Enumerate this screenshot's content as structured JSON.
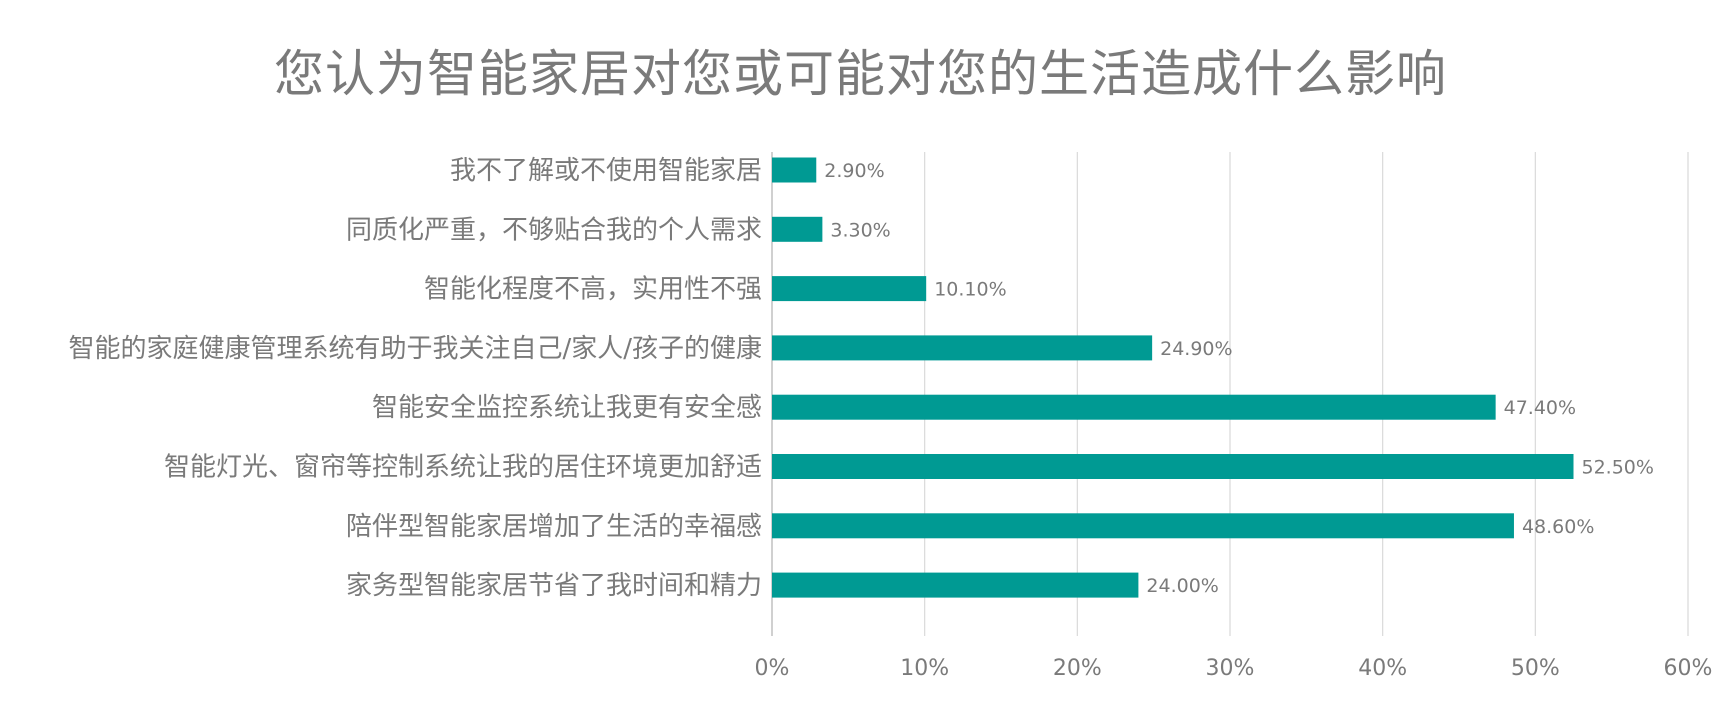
{
  "chart_data": {
    "type": "bar",
    "orientation": "horizontal",
    "title": "您认为智能家居对您或可能对您的生活造成什么影响",
    "xlabel": "",
    "ylabel": "",
    "categories": [
      "我不了解或不使用智能家居",
      "同质化严重，不够贴合我的个人需求",
      "智能化程度不高，实用性不强",
      "智能的家庭健康管理系统有助于我关注自己/家人/孩子的健康",
      "智能安全监控系统让我更有安全感",
      "智能灯光、窗帘等控制系统让我的居住环境更加舒适",
      "陪伴型智能家居增加了生活的幸福感",
      "家务型智能家居节省了我时间和精力"
    ],
    "values": [
      2.9,
      3.3,
      10.1,
      24.9,
      47.4,
      52.5,
      48.6,
      24.0
    ],
    "data_labels": [
      "2.90%",
      "3.30%",
      "10.10%",
      "24.90%",
      "47.40%",
      "52.50%",
      "48.60%",
      "24.00%"
    ],
    "xlim": [
      0,
      60
    ],
    "ticks": [
      0,
      10,
      20,
      30,
      40,
      50,
      60
    ],
    "tick_labels": [
      "0%",
      "10%",
      "20%",
      "30%",
      "40%",
      "50%",
      "60%"
    ],
    "grid": "vertical",
    "legend": "none",
    "colors": {
      "bar": "#009a93",
      "grid": "#d9d9d9",
      "text": "#7a7a7a",
      "title": "#7a7a7a"
    }
  }
}
